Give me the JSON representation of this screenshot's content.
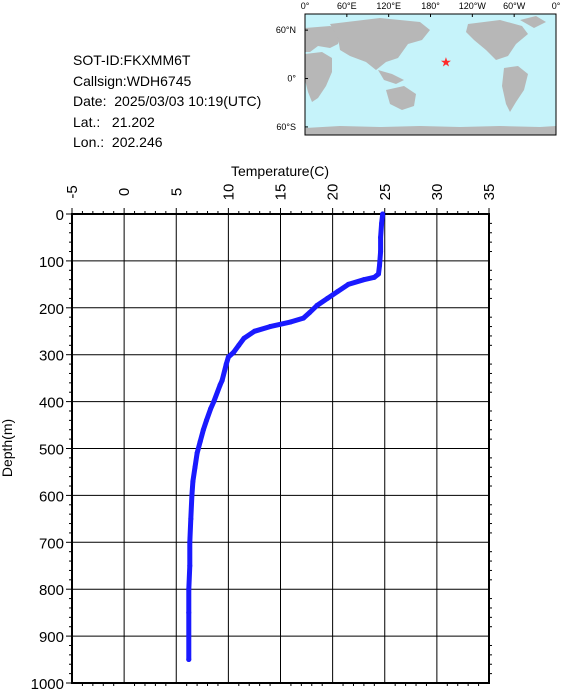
{
  "info": {
    "sot_id": "SOT-ID:FKXMM6T",
    "callsign": "Callsign:WDH6745",
    "date": "Date:  2025/03/03 10:19(UTC)",
    "lat": "Lat.:   21.202",
    "lon": "Lon.:  202.246"
  },
  "map": {
    "top_labels": [
      "0°",
      "60°E",
      "120°E",
      "180°",
      "120°W",
      "60°W",
      "0°"
    ],
    "left_labels": [
      "60°N",
      "0°",
      "60°S"
    ],
    "ocean_color": "#c6f3fa",
    "land_color": "#b7b7b7",
    "marker_color": "#ff2a2a",
    "marker": {
      "lon": 202.246,
      "lat": 21.202
    }
  },
  "chart_data": {
    "type": "line",
    "xlabel": "Temperature(C)",
    "ylabel": "Depth(m)",
    "xlim": [
      -5,
      35
    ],
    "ylim": [
      1000,
      0
    ],
    "x_ticks": [
      "-5",
      "0",
      "5",
      "10",
      "15",
      "20",
      "25",
      "30",
      "35"
    ],
    "y_ticks": [
      "0",
      "100",
      "200",
      "300",
      "400",
      "500",
      "600",
      "700",
      "800",
      "900",
      "1000"
    ],
    "grid": true,
    "line_color": "#1a1aff",
    "series": [
      {
        "x": [
          24.8,
          24.7,
          24.6,
          24.6,
          24.5,
          24.4,
          24.0,
          23.0,
          21.5,
          20.5,
          19.5,
          18.5,
          17.8,
          17.2,
          16.0,
          14.0,
          12.5,
          11.5,
          11.0,
          10.5,
          10.0,
          9.8,
          9.4,
          9.2,
          8.6,
          8.3,
          7.9,
          7.6,
          7.3,
          7.0,
          6.8,
          6.6,
          6.5,
          6.4,
          6.3,
          6.3,
          6.2,
          6.2,
          6.2,
          6.2
        ],
        "y": [
          0,
          20,
          50,
          80,
          110,
          128,
          135,
          140,
          150,
          165,
          180,
          195,
          210,
          222,
          230,
          240,
          250,
          265,
          280,
          295,
          305,
          320,
          355,
          365,
          400,
          415,
          440,
          460,
          485,
          510,
          540,
          570,
          600,
          650,
          700,
          750,
          800,
          850,
          900,
          950
        ]
      }
    ]
  }
}
